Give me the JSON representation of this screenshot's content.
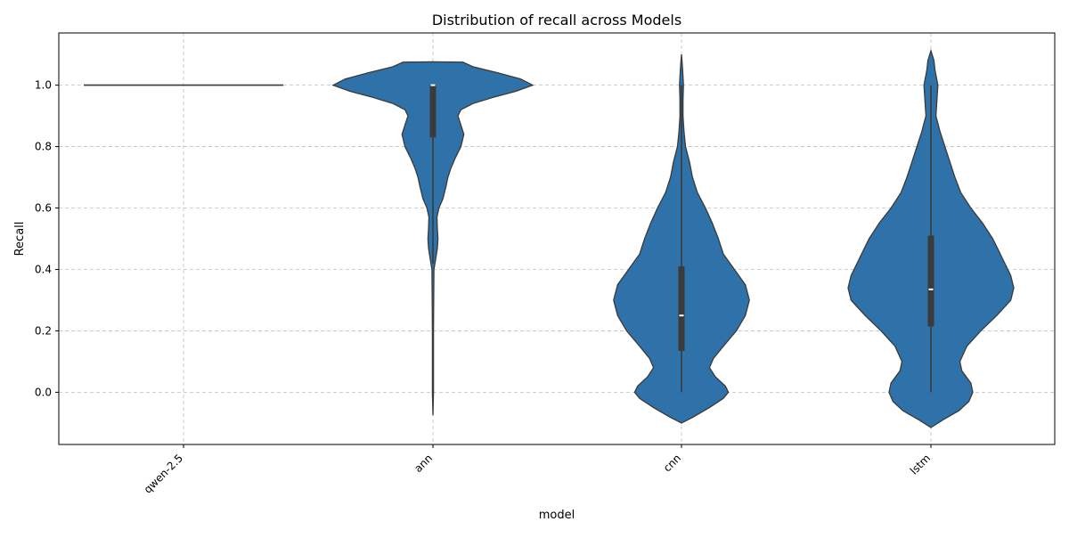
{
  "chart_data": {
    "type": "violin",
    "title": "Distribution of recall across Models",
    "xlabel": "model",
    "ylabel": "Recall",
    "ylim": [
      -0.17,
      1.17
    ],
    "yticks": [
      0.0,
      0.2,
      0.4,
      0.6,
      0.8,
      1.0
    ],
    "ytick_labels": [
      "0.0",
      "0.2",
      "0.4",
      "0.6",
      "0.8",
      "1.0"
    ],
    "grid": true,
    "x_tick_rotation": 45,
    "colors": {
      "fill": "#2e72a9",
      "outline": "#3a3a3a",
      "box": "#3a3a3a",
      "median": "#ffffff"
    },
    "categories": [
      "qwen-2.5",
      "ann",
      "cnn",
      "lstm"
    ],
    "violins": [
      {
        "category": "qwen-2.5",
        "degenerate_value": 1.0,
        "min": 1.0,
        "q1": 1.0,
        "median": 1.0,
        "q3": 1.0,
        "max": 1.0,
        "profile": []
      },
      {
        "category": "ann",
        "min": 0.42,
        "q1": 0.83,
        "median": 1.0,
        "q3": 1.0,
        "max": 1.0,
        "profile": [
          [
            -0.075,
            0.0
          ],
          [
            0.0,
            0.005
          ],
          [
            0.2,
            0.005
          ],
          [
            0.4,
            0.01
          ],
          [
            0.44,
            0.03
          ],
          [
            0.47,
            0.045
          ],
          [
            0.5,
            0.05
          ],
          [
            0.53,
            0.045
          ],
          [
            0.57,
            0.04
          ],
          [
            0.6,
            0.06
          ],
          [
            0.63,
            0.1
          ],
          [
            0.67,
            0.13
          ],
          [
            0.7,
            0.15
          ],
          [
            0.73,
            0.18
          ],
          [
            0.76,
            0.22
          ],
          [
            0.8,
            0.28
          ],
          [
            0.84,
            0.31
          ],
          [
            0.87,
            0.28
          ],
          [
            0.9,
            0.25
          ],
          [
            0.92,
            0.28
          ],
          [
            0.94,
            0.4
          ],
          [
            0.96,
            0.6
          ],
          [
            0.98,
            0.83
          ],
          [
            1.0,
            1.0
          ],
          [
            1.02,
            0.88
          ],
          [
            1.04,
            0.65
          ],
          [
            1.06,
            0.4
          ],
          [
            1.075,
            0.3
          ],
          [
            1.076,
            0.0
          ]
        ]
      },
      {
        "category": "cnn",
        "min": 0.0,
        "q1": 0.135,
        "median": 0.25,
        "q3": 0.41,
        "max": 1.0,
        "profile": [
          [
            -0.1,
            0.0
          ],
          [
            -0.08,
            0.12
          ],
          [
            -0.05,
            0.28
          ],
          [
            -0.02,
            0.42
          ],
          [
            0.0,
            0.47
          ],
          [
            0.02,
            0.44
          ],
          [
            0.05,
            0.34
          ],
          [
            0.08,
            0.28
          ],
          [
            0.11,
            0.32
          ],
          [
            0.15,
            0.42
          ],
          [
            0.2,
            0.55
          ],
          [
            0.25,
            0.64
          ],
          [
            0.3,
            0.68
          ],
          [
            0.35,
            0.64
          ],
          [
            0.4,
            0.53
          ],
          [
            0.45,
            0.42
          ],
          [
            0.5,
            0.37
          ],
          [
            0.55,
            0.31
          ],
          [
            0.6,
            0.24
          ],
          [
            0.65,
            0.16
          ],
          [
            0.7,
            0.11
          ],
          [
            0.75,
            0.08
          ],
          [
            0.8,
            0.04
          ],
          [
            0.85,
            0.025
          ],
          [
            0.9,
            0.015
          ],
          [
            0.95,
            0.015
          ],
          [
            1.0,
            0.02
          ],
          [
            1.05,
            0.012
          ],
          [
            1.1,
            0.0
          ]
        ]
      },
      {
        "category": "lstm",
        "min": 0.0,
        "q1": 0.215,
        "median": 0.335,
        "q3": 0.51,
        "max": 1.0,
        "profile": [
          [
            -0.115,
            0.0
          ],
          [
            -0.09,
            0.12
          ],
          [
            -0.06,
            0.28
          ],
          [
            -0.03,
            0.38
          ],
          [
            0.0,
            0.42
          ],
          [
            0.03,
            0.4
          ],
          [
            0.07,
            0.31
          ],
          [
            0.1,
            0.29
          ],
          [
            0.15,
            0.36
          ],
          [
            0.2,
            0.5
          ],
          [
            0.25,
            0.66
          ],
          [
            0.3,
            0.8
          ],
          [
            0.34,
            0.83
          ],
          [
            0.38,
            0.8
          ],
          [
            0.42,
            0.74
          ],
          [
            0.46,
            0.68
          ],
          [
            0.5,
            0.62
          ],
          [
            0.55,
            0.52
          ],
          [
            0.6,
            0.4
          ],
          [
            0.65,
            0.3
          ],
          [
            0.7,
            0.24
          ],
          [
            0.75,
            0.19
          ],
          [
            0.8,
            0.14
          ],
          [
            0.85,
            0.09
          ],
          [
            0.9,
            0.05
          ],
          [
            0.95,
            0.06
          ],
          [
            1.0,
            0.07
          ],
          [
            1.05,
            0.04
          ],
          [
            1.08,
            0.03
          ],
          [
            1.112,
            0.0
          ]
        ]
      }
    ]
  }
}
